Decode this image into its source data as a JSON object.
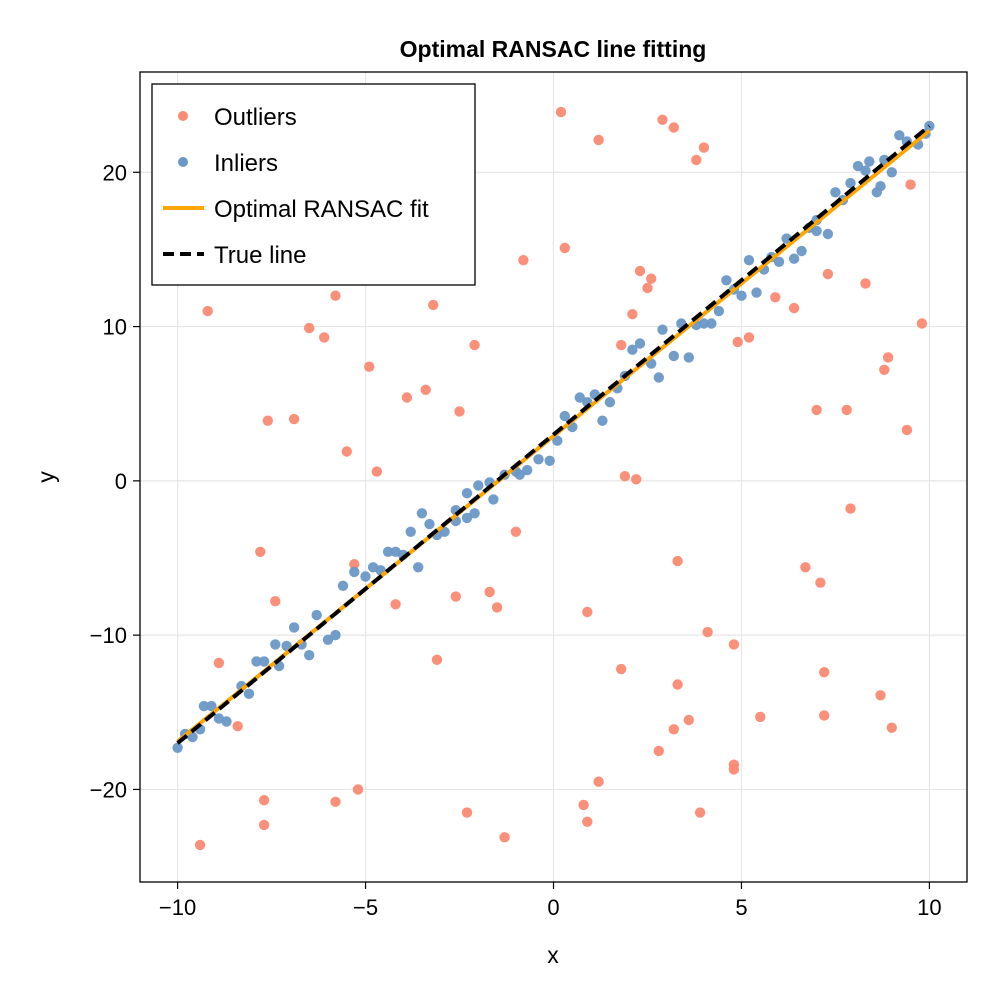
{
  "chart_data": {
    "type": "scatter",
    "title": "Optimal RANSAC line fitting",
    "xlabel": "x",
    "ylabel": "y",
    "xlim": [
      -11,
      11
    ],
    "ylim": [
      -26,
      26.5
    ],
    "xticks": [
      -10,
      -5,
      0,
      5,
      10
    ],
    "yticks": [
      -20,
      -10,
      0,
      10,
      20
    ],
    "xtick_labels": [
      "−10",
      "−5",
      "0",
      "5",
      "10"
    ],
    "ytick_labels": [
      "−20",
      "−10",
      "0",
      "10",
      "20"
    ],
    "grid": true,
    "legend_position": "top-left",
    "legend": [
      {
        "label": "Outliers",
        "kind": "marker",
        "color": "#fa8a73"
      },
      {
        "label": "Inliers",
        "kind": "marker",
        "color": "#6a98c6"
      },
      {
        "label": "Optimal RANSAC fit",
        "kind": "line",
        "color": "#ffa500"
      },
      {
        "label": "True line",
        "kind": "dashed",
        "color": "#000000"
      }
    ],
    "series": [
      {
        "name": "Outliers",
        "color": "#fa8a73",
        "points": [
          [
            -9.4,
            -23.6
          ],
          [
            -9.2,
            11.0
          ],
          [
            -8.9,
            -11.8
          ],
          [
            -8.4,
            -15.9
          ],
          [
            -7.8,
            -4.6
          ],
          [
            -7.7,
            -20.7
          ],
          [
            -7.7,
            -22.3
          ],
          [
            -7.6,
            3.9
          ],
          [
            -7.4,
            -7.8
          ],
          [
            -6.9,
            4.0
          ],
          [
            -6.5,
            9.9
          ],
          [
            -6.1,
            9.3
          ],
          [
            -5.8,
            12.0
          ],
          [
            -5.8,
            -20.8
          ],
          [
            -5.5,
            1.9
          ],
          [
            -5.3,
            -5.4
          ],
          [
            -5.2,
            -20.0
          ],
          [
            -4.9,
            7.4
          ],
          [
            -4.7,
            0.6
          ],
          [
            -4.2,
            -8.0
          ],
          [
            -3.9,
            5.4
          ],
          [
            -3.4,
            5.9
          ],
          [
            -3.2,
            11.4
          ],
          [
            -3.1,
            -11.6
          ],
          [
            -2.5,
            4.5
          ],
          [
            -2.6,
            -7.5
          ],
          [
            -2.3,
            -21.5
          ],
          [
            -2.1,
            8.8
          ],
          [
            -1.7,
            -7.2
          ],
          [
            -1.5,
            -8.2
          ],
          [
            -1.3,
            -23.1
          ],
          [
            -1.0,
            -3.3
          ],
          [
            -0.8,
            14.3
          ],
          [
            0.2,
            23.9
          ],
          [
            0.3,
            15.1
          ],
          [
            0.8,
            -21.0
          ],
          [
            0.9,
            -22.1
          ],
          [
            0.9,
            -8.5
          ],
          [
            1.2,
            22.1
          ],
          [
            1.2,
            -19.5
          ],
          [
            1.8,
            8.8
          ],
          [
            1.8,
            -12.2
          ],
          [
            1.9,
            0.3
          ],
          [
            2.1,
            10.8
          ],
          [
            2.2,
            0.1
          ],
          [
            2.3,
            13.6
          ],
          [
            2.5,
            12.5
          ],
          [
            2.6,
            13.1
          ],
          [
            2.8,
            -17.5
          ],
          [
            2.9,
            23.4
          ],
          [
            3.2,
            22.9
          ],
          [
            3.2,
            -16.1
          ],
          [
            3.3,
            -5.2
          ],
          [
            3.3,
            -13.2
          ],
          [
            3.6,
            -15.5
          ],
          [
            3.8,
            20.8
          ],
          [
            3.9,
            -21.5
          ],
          [
            4.0,
            21.6
          ],
          [
            4.1,
            -9.8
          ],
          [
            4.8,
            -18.7
          ],
          [
            4.8,
            -18.4
          ],
          [
            4.8,
            -10.6
          ],
          [
            4.9,
            9.0
          ],
          [
            5.2,
            9.3
          ],
          [
            5.5,
            -15.3
          ],
          [
            5.9,
            11.9
          ],
          [
            6.4,
            11.2
          ],
          [
            6.7,
            -5.6
          ],
          [
            7.0,
            4.6
          ],
          [
            7.1,
            -6.6
          ],
          [
            7.2,
            -12.4
          ],
          [
            7.2,
            -15.2
          ],
          [
            7.3,
            13.4
          ],
          [
            7.8,
            4.6
          ],
          [
            7.9,
            -1.8
          ],
          [
            8.3,
            12.8
          ],
          [
            8.7,
            -13.9
          ],
          [
            8.8,
            7.2
          ],
          [
            8.9,
            8.0
          ],
          [
            9.0,
            -16.0
          ],
          [
            9.4,
            3.3
          ],
          [
            9.5,
            19.2
          ],
          [
            9.8,
            10.2
          ]
        ]
      },
      {
        "name": "Inliers",
        "color": "#6a98c6",
        "points": [
          [
            -10.0,
            -17.3
          ],
          [
            -9.8,
            -16.4
          ],
          [
            -9.6,
            -16.6
          ],
          [
            -9.4,
            -16.1
          ],
          [
            -9.3,
            -14.6
          ],
          [
            -9.1,
            -14.6
          ],
          [
            -8.9,
            -15.4
          ],
          [
            -8.7,
            -15.6
          ],
          [
            -8.3,
            -13.3
          ],
          [
            -8.1,
            -13.8
          ],
          [
            -7.9,
            -11.7
          ],
          [
            -7.7,
            -11.7
          ],
          [
            -7.4,
            -10.6
          ],
          [
            -7.3,
            -12.0
          ],
          [
            -7.1,
            -10.7
          ],
          [
            -6.9,
            -9.5
          ],
          [
            -6.7,
            -10.6
          ],
          [
            -6.5,
            -11.3
          ],
          [
            -6.3,
            -8.7
          ],
          [
            -6.0,
            -10.3
          ],
          [
            -5.8,
            -10.0
          ],
          [
            -5.6,
            -6.8
          ],
          [
            -5.3,
            -5.9
          ],
          [
            -5.0,
            -6.2
          ],
          [
            -4.8,
            -5.6
          ],
          [
            -4.6,
            -5.8
          ],
          [
            -4.4,
            -4.6
          ],
          [
            -4.2,
            -4.6
          ],
          [
            -4.0,
            -4.8
          ],
          [
            -3.8,
            -3.3
          ],
          [
            -3.6,
            -5.6
          ],
          [
            -3.5,
            -2.1
          ],
          [
            -3.3,
            -2.8
          ],
          [
            -3.1,
            -3.5
          ],
          [
            -2.9,
            -3.3
          ],
          [
            -2.6,
            -1.9
          ],
          [
            -2.6,
            -2.6
          ],
          [
            -2.3,
            -0.8
          ],
          [
            -2.3,
            -2.4
          ],
          [
            -2.1,
            -2.1
          ],
          [
            -2.0,
            -0.3
          ],
          [
            -1.7,
            -0.1
          ],
          [
            -1.6,
            -1.2
          ],
          [
            -1.3,
            0.4
          ],
          [
            -1.0,
            0.6
          ],
          [
            -0.9,
            0.4
          ],
          [
            -0.7,
            0.7
          ],
          [
            -0.4,
            1.4
          ],
          [
            -0.1,
            1.3
          ],
          [
            0.1,
            2.6
          ],
          [
            0.3,
            4.2
          ],
          [
            0.5,
            3.5
          ],
          [
            0.7,
            5.4
          ],
          [
            0.9,
            5.1
          ],
          [
            1.1,
            5.6
          ],
          [
            1.3,
            3.9
          ],
          [
            1.5,
            5.1
          ],
          [
            1.7,
            6.0
          ],
          [
            1.9,
            6.8
          ],
          [
            2.1,
            8.5
          ],
          [
            2.3,
            8.9
          ],
          [
            2.6,
            7.6
          ],
          [
            2.8,
            6.7
          ],
          [
            2.9,
            9.8
          ],
          [
            3.2,
            8.1
          ],
          [
            3.4,
            10.2
          ],
          [
            3.6,
            8.0
          ],
          [
            3.8,
            10.1
          ],
          [
            4.0,
            10.2
          ],
          [
            4.2,
            10.2
          ],
          [
            4.4,
            11.0
          ],
          [
            4.6,
            13.0
          ],
          [
            4.8,
            12.4
          ],
          [
            5.0,
            12.0
          ],
          [
            5.2,
            14.3
          ],
          [
            5.4,
            12.2
          ],
          [
            5.6,
            13.7
          ],
          [
            5.8,
            14.5
          ],
          [
            6.0,
            14.2
          ],
          [
            6.2,
            15.7
          ],
          [
            6.4,
            14.4
          ],
          [
            6.6,
            14.9
          ],
          [
            6.8,
            16.4
          ],
          [
            7.0,
            16.9
          ],
          [
            7.0,
            16.2
          ],
          [
            7.3,
            16.0
          ],
          [
            7.5,
            18.7
          ],
          [
            7.7,
            18.2
          ],
          [
            7.9,
            19.3
          ],
          [
            8.1,
            20.4
          ],
          [
            8.3,
            20.1
          ],
          [
            8.4,
            20.7
          ],
          [
            8.6,
            18.7
          ],
          [
            8.7,
            19.1
          ],
          [
            8.8,
            20.8
          ],
          [
            9.0,
            20.0
          ],
          [
            9.2,
            22.4
          ],
          [
            9.4,
            22.0
          ],
          [
            9.7,
            21.8
          ],
          [
            9.9,
            22.5
          ],
          [
            10.0,
            23.0
          ]
        ]
      }
    ],
    "lines": [
      {
        "name": "Optimal RANSAC fit",
        "style": "solid",
        "color": "#ffa500",
        "x": [
          -10,
          10
        ],
        "y": [
          -16.9,
          22.7
        ]
      },
      {
        "name": "True line",
        "style": "dashed",
        "color": "#000000",
        "x": [
          -10,
          10
        ],
        "y": [
          -17.0,
          23.0
        ]
      }
    ]
  }
}
